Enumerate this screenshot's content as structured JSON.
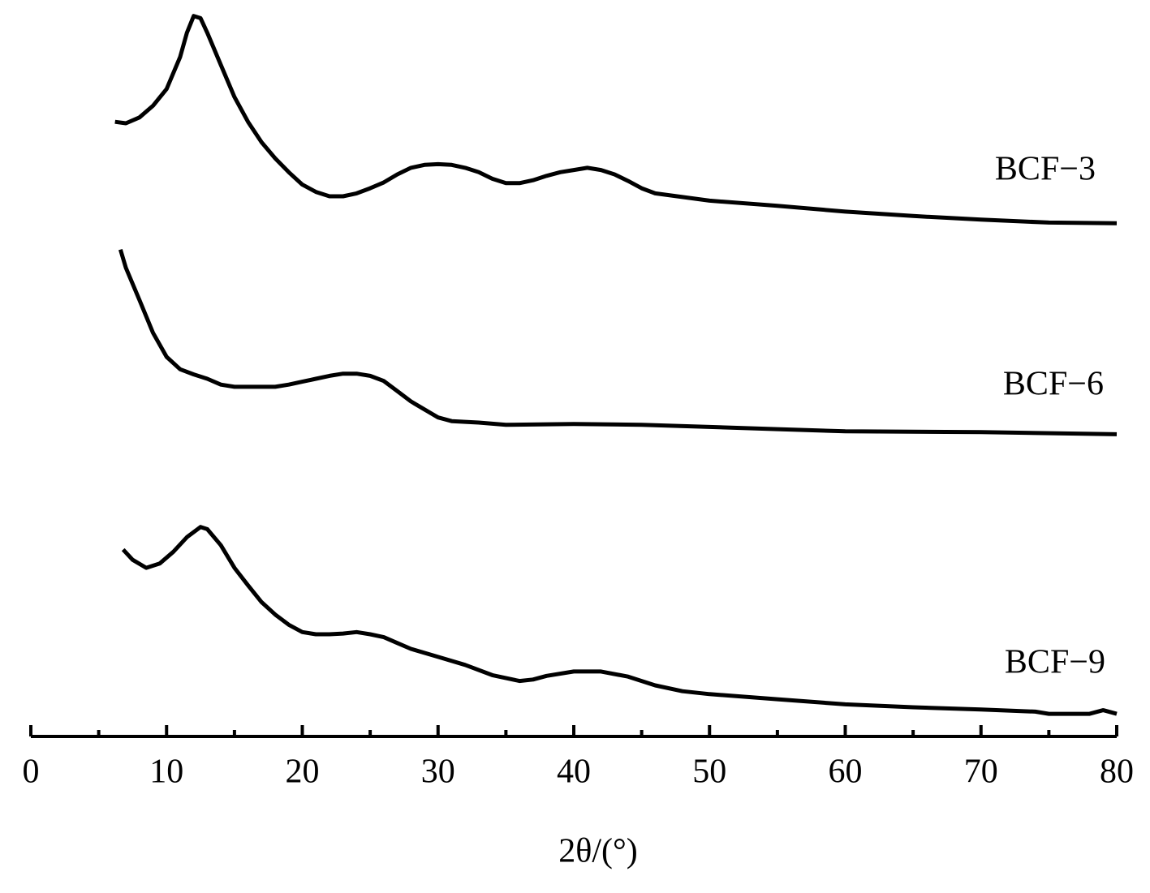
{
  "chart_data": {
    "type": "line",
    "x_label": "2θ/(°)",
    "xlim": [
      0,
      80
    ],
    "xticks": [
      0,
      10,
      20,
      30,
      40,
      50,
      60,
      70,
      80
    ],
    "minor_xticks": [
      5,
      15,
      25,
      35,
      45,
      55,
      65,
      75
    ],
    "ylim": [
      0,
      100
    ],
    "series": [
      {
        "name": "BCF−3",
        "color": "#000000",
        "x": [
          6.2,
          7,
          8,
          9,
          10,
          11,
          11.5,
          12,
          12.5,
          13,
          14,
          15,
          16,
          17,
          18,
          19,
          20,
          21,
          22,
          23,
          24,
          25,
          26,
          27,
          28,
          29,
          30,
          31,
          32,
          33,
          34,
          35,
          36,
          37,
          38,
          39,
          40,
          41,
          42,
          43,
          44,
          45,
          46,
          48,
          50,
          55,
          60,
          65,
          70,
          75,
          80
        ],
        "values": [
          84.2,
          84.0,
          84.8,
          86.4,
          88.7,
          93.1,
          96.4,
          98.7,
          98.4,
          96.4,
          92.0,
          87.6,
          84.2,
          81.4,
          79.2,
          77.3,
          75.6,
          74.6,
          74.0,
          74.0,
          74.4,
          75.1,
          75.9,
          77.0,
          77.9,
          78.3,
          78.4,
          78.3,
          77.9,
          77.3,
          76.4,
          75.8,
          75.8,
          76.2,
          76.8,
          77.3,
          77.6,
          77.9,
          77.6,
          77.0,
          76.1,
          75.1,
          74.4,
          73.9,
          73.4,
          72.7,
          71.9,
          71.3,
          70.8,
          70.4,
          70.3
        ]
      },
      {
        "name": "BCF−6",
        "color": "#000000",
        "x": [
          6.6,
          7,
          8,
          9,
          10,
          11,
          12,
          13,
          14,
          15,
          16,
          18,
          19,
          20,
          21,
          22,
          23,
          24,
          25,
          26,
          27,
          28,
          29,
          30,
          31,
          33,
          35,
          40,
          45,
          50,
          55,
          60,
          70,
          80
        ],
        "values": [
          66.7,
          64.2,
          59.8,
          55.3,
          52.0,
          50.3,
          49.6,
          49.0,
          48.2,
          47.9,
          47.9,
          47.9,
          48.2,
          48.6,
          49.0,
          49.4,
          49.7,
          49.7,
          49.4,
          48.7,
          47.3,
          45.9,
          44.8,
          43.7,
          43.2,
          43.0,
          42.7,
          42.8,
          42.7,
          42.4,
          42.1,
          41.8,
          41.7,
          41.4
        ]
      },
      {
        "name": "BCF−9",
        "color": "#000000",
        "x": [
          6.8,
          7.5,
          8.5,
          9.5,
          10.5,
          11.5,
          12.5,
          13,
          14,
          15,
          16,
          17,
          18,
          19,
          20,
          21,
          22,
          23,
          24,
          25,
          26,
          27,
          28,
          30,
          32,
          34,
          36,
          37,
          38,
          40,
          42,
          44,
          46,
          48,
          50,
          55,
          60,
          65,
          70,
          74,
          75,
          78,
          79,
          80
        ],
        "values": [
          25.6,
          24.2,
          23.1,
          23.7,
          25.3,
          27.3,
          28.7,
          28.4,
          26.2,
          23.1,
          20.7,
          18.4,
          16.7,
          15.3,
          14.3,
          14.0,
          14.0,
          14.1,
          14.3,
          14.0,
          13.6,
          12.8,
          12.0,
          10.9,
          9.8,
          8.4,
          7.6,
          7.8,
          8.3,
          8.9,
          8.9,
          8.2,
          7.0,
          6.2,
          5.8,
          5.1,
          4.4,
          4.0,
          3.7,
          3.4,
          3.1,
          3.1,
          3.6,
          3.1
        ]
      }
    ]
  }
}
